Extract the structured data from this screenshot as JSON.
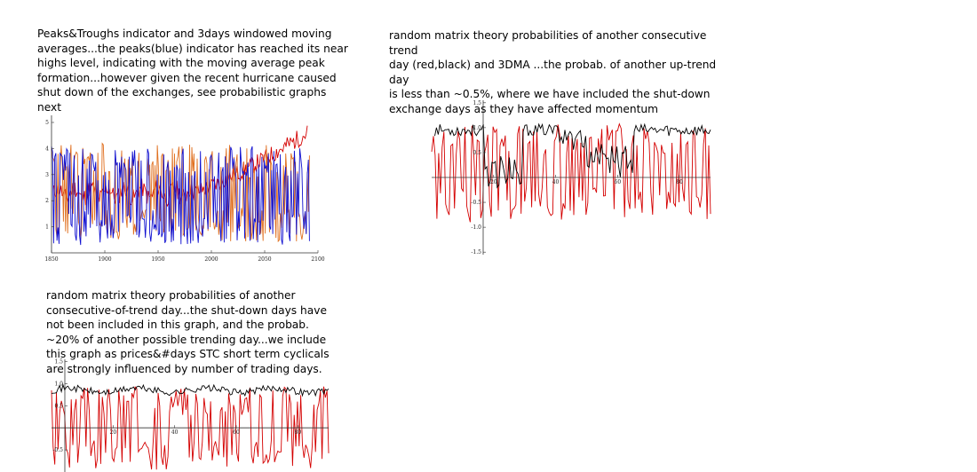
{
  "captions": {
    "left": "Peaks&Troughs indicator and 3days windowed moving\naverages...the peaks(blue) indicator has reached its near\nhighs level, indicating with the moving average peak\nformation...however given the recent hurricane caused\nshut down of the exchanges, see probabilistic graphs\nnext",
    "right": "random matrix theory probabilities of another consecutive trend\nday (red,black) and 3DMA ...the probab. of another up-trend day\nis less than ~0.5%, where we have included the shut-down\nexchange days as they have affected momentum",
    "bottom": "random matrix theory probabilities of another\nconsecutive-of-trend day...the shut-down days have\nnot been included in this graph, and the probab.\n~20% of another possible trending day...we include\nthis graph as prices&#days STC short term cyclicals\nare strongly influenced by number of trading days."
  },
  "colors": {
    "red": "#d40000",
    "blue": "#1010d0",
    "orange": "#e07020",
    "black": "#000000",
    "axis": "#333333"
  },
  "chart_data": [
    {
      "type": "line",
      "xlim": [
        1850,
        2100
      ],
      "ylim": [
        0,
        5
      ],
      "xticks": [
        1850,
        1900,
        1950,
        2000,
        2050,
        2100
      ],
      "yticks": [
        1,
        2,
        3,
        4,
        5
      ],
      "series": [
        {
          "color": "#d40000",
          "kind": "trend",
          "seed": 11,
          "start": 2.3,
          "end": 4.6,
          "amp": 0.35,
          "x0": 1852,
          "x1": 2090,
          "n": 240
        },
        {
          "color": "#e07020",
          "kind": "osc",
          "seed": 23,
          "mid": 2.3,
          "amp": 1.9,
          "x0": 1850,
          "x1": 2092,
          "n": 240
        },
        {
          "color": "#1010d0",
          "kind": "osc",
          "seed": 37,
          "mid": 2.2,
          "amp": 1.9,
          "x0": 1850,
          "x1": 2092,
          "n": 240
        }
      ]
    },
    {
      "type": "line",
      "xlim": [
        0,
        90
      ],
      "ylim": [
        -1.55,
        1.55
      ],
      "xticks": [
        20,
        40,
        60,
        80
      ],
      "yticks": [
        -1.5,
        -1.0,
        -0.5,
        0.5,
        1.0,
        1.5
      ],
      "series": [
        {
          "color": "#d40000",
          "kind": "osc",
          "seed": 41,
          "mid": 0.1,
          "amp": 1.0,
          "x0": 0,
          "x1": 90,
          "n": 160
        },
        {
          "color": "#000000",
          "kind": "trough",
          "seed": 53,
          "mid": 0.95,
          "amp": 0.12,
          "x0": 1,
          "x1": 90,
          "n": 160
        }
      ]
    },
    {
      "type": "line",
      "xlim": [
        0,
        90
      ],
      "ylim": [
        -1.0,
        1.55
      ],
      "xticks": [
        20,
        40,
        60,
        80
      ],
      "yticks": [
        -0.5,
        0.5,
        1.0,
        1.5
      ],
      "series": [
        {
          "color": "#d40000",
          "kind": "osc",
          "seed": 67,
          "mid": 0.0,
          "amp": 0.95,
          "x0": 0,
          "x1": 90,
          "n": 170
        },
        {
          "color": "#000000",
          "kind": "flat",
          "seed": 71,
          "mid": 0.85,
          "amp": 0.08,
          "x0": 0,
          "x1": 90,
          "n": 170
        }
      ]
    }
  ]
}
